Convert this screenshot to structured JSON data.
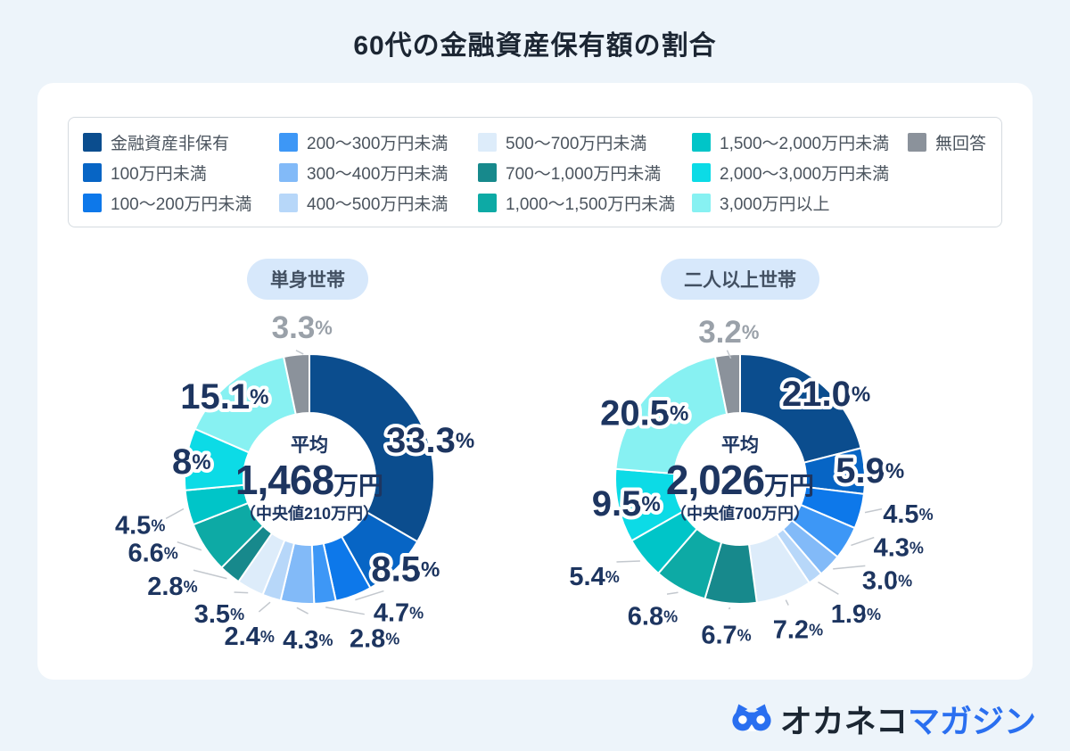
{
  "page": {
    "title": "60代の金融資産保有額の割合"
  },
  "colors": {
    "page_bg": "#edf4fa",
    "card_bg": "#ffffff",
    "navy_label": "#1d3560",
    "gray_label": "#9aa1a9",
    "leader_line": "#c3c8ce",
    "badge_bg": "#d7e8fb",
    "badge_text": "#425062",
    "legend_text": "#4b545e",
    "logo_blue": "#2a6ff0",
    "logo_dark": "#1c2733",
    "palette": [
      "#0b4d8e",
      "#0765c5",
      "#0d78ea",
      "#3d97f6",
      "#82baf8",
      "#b7d7f9",
      "#ddecfa",
      "#17898c",
      "#0daaa5",
      "#00c5c8",
      "#0cdbe6",
      "#87f1f2",
      "#8b929b"
    ]
  },
  "legend": {
    "labels": [
      "金融資産非保有",
      "100万円未満",
      "100〜200万円未満",
      "200〜300万円未満",
      "300〜400万円未満",
      "400〜500万円未満",
      "500〜700万円未満",
      "700〜1,000万円未満",
      "1,000〜1,500万円未満",
      "1,500〜2,000万円未満",
      "2,000〜3,000万円未満",
      "3,000万円以上",
      "無回答"
    ]
  },
  "chart_data": [
    {
      "type": "pie",
      "subtype": "donut",
      "group_label": "単身世帯",
      "center": {
        "prefix": "平均",
        "value": "1,468",
        "unit": "万円",
        "median": "（中央値210万円）"
      },
      "categories": [
        "金融資産非保有",
        "100万円未満",
        "100〜200万円未満",
        "200〜300万円未満",
        "300〜400万円未満",
        "400〜500万円未満",
        "500〜700万円未満",
        "700〜1,000万円未満",
        "1,000〜1,500万円未満",
        "1,500〜2,000万円未満",
        "2,000〜3,000万円未満",
        "3,000万円以上",
        "無回答"
      ],
      "values": [
        33.3,
        8.5,
        4.7,
        2.8,
        4.3,
        2.4,
        3.5,
        2.8,
        6.6,
        4.5,
        8,
        15.1,
        3.3
      ],
      "display_labels": [
        "33.3",
        "8.5",
        "4.7",
        "2.8",
        "4.3",
        "2.4",
        "3.5",
        "2.8",
        "6.6",
        "4.5",
        "8",
        "15.1",
        "3.3"
      ],
      "value_suffix": "%",
      "label_styles": [
        "large",
        "large",
        "medium",
        "medium",
        "medium",
        "medium",
        "medium",
        "medium",
        "medium",
        "medium",
        "large",
        "large",
        "gray"
      ],
      "legend_position": "top",
      "start_angle": "12-oclock-clockwise"
    },
    {
      "type": "pie",
      "subtype": "donut",
      "group_label": "二人以上世帯",
      "center": {
        "prefix": "平均",
        "value": "2,026",
        "unit": "万円",
        "median": "（中央値700万円）"
      },
      "categories": [
        "金融資産非保有",
        "100万円未満",
        "100〜200万円未満",
        "200〜300万円未満",
        "300〜400万円未満",
        "400〜500万円未満",
        "500〜700万円未満",
        "700〜1,000万円未満",
        "1,000〜1,500万円未満",
        "1,500〜2,000万円未満",
        "2,000〜3,000万円未満",
        "3,000万円以上",
        "無回答"
      ],
      "values": [
        21.0,
        5.9,
        4.5,
        4.3,
        3.0,
        1.9,
        7.2,
        6.7,
        6.8,
        5.4,
        9.5,
        20.5,
        3.2
      ],
      "display_labels": [
        "21.0",
        "5.9",
        "4.5",
        "4.3",
        "3.0",
        "1.9",
        "7.2",
        "6.7",
        "6.8",
        "5.4",
        "9.5",
        "20.5",
        "3.2"
      ],
      "value_suffix": "%",
      "label_styles": [
        "large",
        "large",
        "medium",
        "medium",
        "medium",
        "medium",
        "medium",
        "medium",
        "medium",
        "medium",
        "large",
        "large",
        "gray"
      ],
      "legend_position": "top",
      "start_angle": "12-oclock-clockwise"
    }
  ],
  "footer": {
    "brand_main": "オカネコ",
    "brand_sub": "マガジン"
  }
}
